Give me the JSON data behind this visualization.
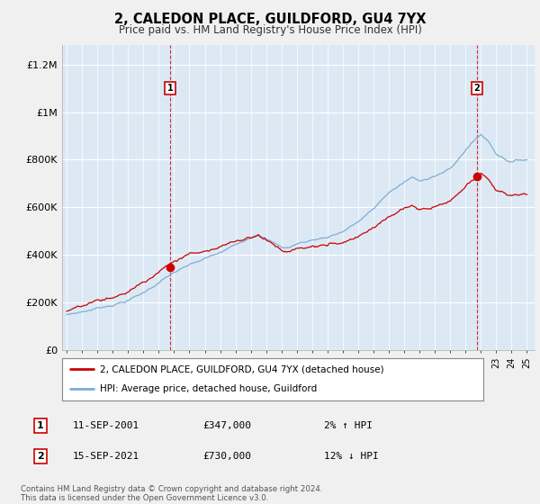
{
  "title": "2, CALEDON PLACE, GUILDFORD, GU4 7YX",
  "subtitle": "Price paid vs. HM Land Registry's House Price Index (HPI)",
  "ylabel_ticks": [
    "£0",
    "£200K",
    "£400K",
    "£600K",
    "£800K",
    "£1M",
    "£1.2M"
  ],
  "ytick_values": [
    0,
    200000,
    400000,
    600000,
    800000,
    1000000,
    1200000
  ],
  "ylim": [
    0,
    1280000
  ],
  "hpi_color": "#7dadd4",
  "price_color": "#cc0000",
  "marker1_year_idx": 81,
  "marker2_year_idx": 321,
  "marker1_price": 347000,
  "marker2_price": 730000,
  "legend_label1": "2, CALEDON PLACE, GUILDFORD, GU4 7YX (detached house)",
  "legend_label2": "HPI: Average price, detached house, Guildford",
  "annotation1_num": "1",
  "annotation2_num": "2",
  "sale1_date": "11-SEP-2001",
  "sale1_price": "£347,000",
  "sale1_hpi": "2% ↑ HPI",
  "sale2_date": "15-SEP-2021",
  "sale2_price": "£730,000",
  "sale2_hpi": "12% ↓ HPI",
  "footer": "Contains HM Land Registry data © Crown copyright and database right 2024.\nThis data is licensed under the Open Government Licence v3.0.",
  "bg_color": "#f0f0f0",
  "plot_bg_color": "#dce9f5",
  "grid_color": "#ffffff"
}
